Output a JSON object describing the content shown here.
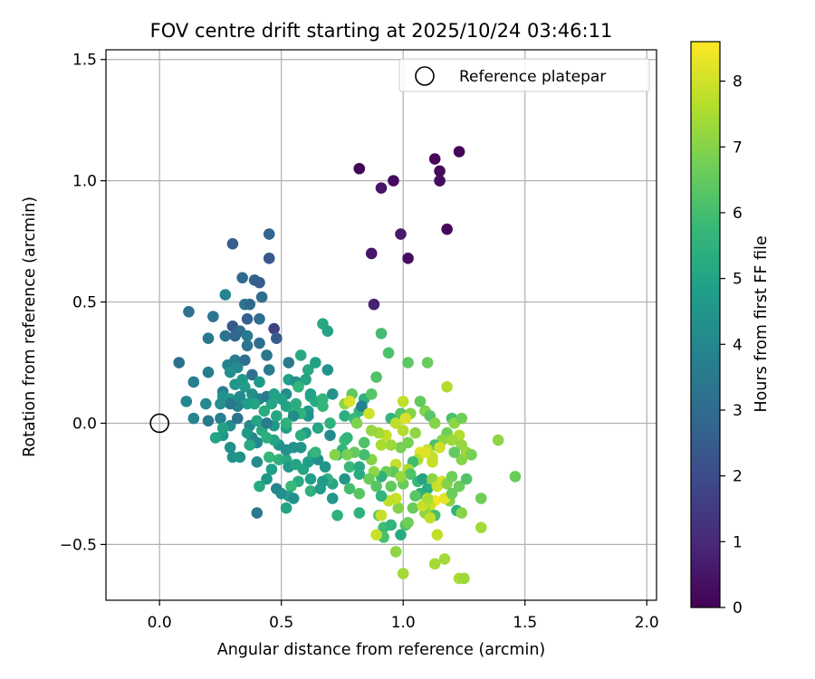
{
  "chart_data": {
    "type": "scatter",
    "title": "FOV centre drift starting at 2025/10/24 03:46:11",
    "xlabel": "Angular distance from reference (arcmin)",
    "ylabel": "Rotation from reference (arcmin)",
    "xlim": [
      -0.22,
      2.04
    ],
    "ylim": [
      -0.73,
      1.54
    ],
    "xticks": [
      0.0,
      0.5,
      1.0,
      1.5,
      2.0
    ],
    "xtick_labels": [
      "0.0",
      "0.5",
      "1.0",
      "1.5",
      "2.0"
    ],
    "yticks": [
      -0.5,
      0.0,
      0.5,
      1.0,
      1.5
    ],
    "ytick_labels": [
      "−0.5",
      "0.0",
      "0.5",
      "1.0",
      "1.5"
    ],
    "grid": true,
    "legend": {
      "label": "Reference platepar",
      "position": "top-right"
    },
    "reference_point": {
      "x": 0.0,
      "y": 0.0
    },
    "colorbar": {
      "label": "Hours from first FF file",
      "range": [
        0,
        8.6
      ],
      "ticks": [
        0,
        1,
        2,
        3,
        4,
        5,
        6,
        7,
        8
      ],
      "tick_labels": [
        "0",
        "1",
        "2",
        "3",
        "4",
        "5",
        "6",
        "7",
        "8"
      ],
      "colormap": "viridis"
    },
    "colormap_stops": [
      "#440154",
      "#482878",
      "#3e4989",
      "#31688e",
      "#26828e",
      "#1f9e89",
      "#35b779",
      "#6ece58",
      "#b5de2b",
      "#fde725"
    ],
    "points": [
      [
        0.82,
        1.05,
        0.1
      ],
      [
        0.96,
        1.0,
        0.25
      ],
      [
        0.91,
        0.97,
        0.5
      ],
      [
        1.13,
        1.09,
        0.15
      ],
      [
        1.23,
        1.12,
        0.1
      ],
      [
        1.15,
        1.04,
        0.2
      ],
      [
        1.15,
        1.0,
        0.3
      ],
      [
        1.18,
        0.8,
        0.2
      ],
      [
        0.99,
        0.78,
        0.6
      ],
      [
        0.87,
        0.7,
        0.5
      ],
      [
        1.02,
        0.68,
        0.3
      ],
      [
        0.88,
        0.49,
        0.8
      ],
      [
        0.3,
        0.74,
        2.6
      ],
      [
        0.45,
        0.78,
        2.8
      ],
      [
        0.45,
        0.68,
        2.4
      ],
      [
        0.34,
        0.6,
        2.9
      ],
      [
        0.39,
        0.59,
        2.7
      ],
      [
        0.41,
        0.58,
        2.5
      ],
      [
        0.35,
        0.49,
        3.3
      ],
      [
        0.37,
        0.49,
        2.9
      ],
      [
        0.42,
        0.52,
        3.1
      ],
      [
        0.27,
        0.53,
        3.9
      ],
      [
        0.12,
        0.46,
        3.2
      ],
      [
        0.22,
        0.44,
        3.3
      ],
      [
        0.36,
        0.43,
        2.6
      ],
      [
        0.41,
        0.43,
        3.1
      ],
      [
        0.3,
        0.4,
        2.4
      ],
      [
        0.33,
        0.38,
        3.0
      ],
      [
        0.27,
        0.36,
        3.3
      ],
      [
        0.31,
        0.36,
        2.8
      ],
      [
        0.36,
        0.36,
        3.5
      ],
      [
        0.47,
        0.39,
        1.7
      ],
      [
        0.48,
        0.35,
        2.5
      ],
      [
        0.2,
        0.35,
        3.4
      ],
      [
        0.36,
        0.32,
        3.3
      ],
      [
        0.41,
        0.33,
        3.1
      ],
      [
        0.44,
        0.28,
        3.4
      ],
      [
        0.31,
        0.26,
        3.6
      ],
      [
        0.35,
        0.26,
        3.1
      ],
      [
        0.28,
        0.24,
        3.8
      ],
      [
        0.32,
        0.23,
        4.1
      ],
      [
        0.29,
        0.21,
        4.3
      ],
      [
        0.45,
        0.22,
        3.6
      ],
      [
        0.38,
        0.2,
        3.2
      ],
      [
        0.34,
        0.18,
        4.6
      ],
      [
        0.26,
        0.13,
        3.6
      ],
      [
        0.14,
        0.17,
        3.7
      ],
      [
        0.2,
        0.21,
        3.7
      ],
      [
        0.08,
        0.25,
        3.2
      ],
      [
        0.31,
        0.16,
        4.5
      ],
      [
        0.35,
        0.15,
        4.7
      ],
      [
        0.26,
        0.11,
        4.4
      ],
      [
        0.29,
        0.1,
        4.6
      ],
      [
        0.33,
        0.11,
        4.1
      ],
      [
        0.38,
        0.12,
        4.3
      ],
      [
        0.41,
        0.1,
        3.9
      ],
      [
        0.44,
        0.11,
        3.5
      ],
      [
        0.47,
        0.12,
        4.9
      ],
      [
        0.52,
        0.12,
        4.2
      ],
      [
        0.53,
        0.18,
        4.8
      ],
      [
        0.56,
        0.17,
        4.3
      ],
      [
        0.53,
        0.25,
        3.5
      ],
      [
        0.6,
        0.18,
        5.0
      ],
      [
        0.57,
        0.15,
        5.6
      ],
      [
        0.61,
        0.22,
        5.2
      ],
      [
        0.64,
        0.25,
        4.9
      ],
      [
        0.58,
        0.28,
        5.2
      ],
      [
        0.67,
        0.41,
        5.2
      ],
      [
        0.69,
        0.38,
        5.0
      ],
      [
        0.69,
        0.22,
        4.4
      ],
      [
        0.62,
        0.11,
        5.4
      ],
      [
        0.64,
        0.09,
        5.2
      ],
      [
        0.67,
        0.07,
        5.6
      ],
      [
        0.61,
        0.05,
        4.7
      ],
      [
        0.61,
        0.03,
        4.4
      ],
      [
        0.55,
        0.05,
        5.8
      ],
      [
        0.58,
        0.04,
        5.5
      ],
      [
        0.52,
        0.07,
        5.0
      ],
      [
        0.5,
        0.1,
        4.9
      ],
      [
        0.46,
        0.08,
        5.1
      ],
      [
        0.43,
        0.05,
        5.3
      ],
      [
        0.39,
        0.08,
        5.0
      ],
      [
        0.36,
        0.08,
        4.8
      ],
      [
        0.32,
        0.07,
        3.9
      ],
      [
        0.29,
        0.08,
        3.4
      ],
      [
        0.25,
        0.08,
        4.3
      ],
      [
        0.19,
        0.08,
        4.1
      ],
      [
        0.11,
        0.09,
        4.0
      ],
      [
        0.14,
        0.02,
        3.9
      ],
      [
        0.2,
        0.01,
        3.5
      ],
      [
        0.25,
        0.02,
        3.8
      ],
      [
        0.29,
        -0.01,
        4.2
      ],
      [
        0.32,
        0.02,
        3.3
      ],
      [
        0.37,
        -0.01,
        4.1
      ],
      [
        0.4,
        0.01,
        5.0
      ],
      [
        0.42,
        -0.03,
        5.2
      ],
      [
        0.47,
        -0.01,
        4.5
      ],
      [
        0.52,
        -0.02,
        4.9
      ],
      [
        0.55,
        0.03,
        4.2
      ],
      [
        0.6,
        -0.04,
        4.7
      ],
      [
        0.65,
        -0.02,
        5.1
      ],
      [
        0.7,
        0.0,
        5.5
      ],
      [
        0.71,
        0.12,
        4.3
      ],
      [
        0.7,
        -0.05,
        4.1
      ],
      [
        0.76,
        0.03,
        5.4
      ],
      [
        0.76,
        -0.07,
        5.9
      ],
      [
        0.75,
        -0.11,
        5.6
      ],
      [
        0.73,
        -0.13,
        5.5
      ],
      [
        0.77,
        -0.06,
        5.6
      ],
      [
        0.8,
        0.02,
        5.8
      ],
      [
        0.82,
        0.05,
        5.6
      ],
      [
        0.84,
        0.1,
        5.5
      ],
      [
        0.87,
        0.12,
        6.3
      ],
      [
        0.89,
        0.19,
        6.2
      ],
      [
        0.79,
        0.12,
        6.5
      ],
      [
        0.76,
        0.08,
        7.1
      ],
      [
        0.83,
        0.07,
        3.8
      ],
      [
        0.91,
        0.37,
        6.0
      ],
      [
        0.94,
        0.29,
        6.1
      ],
      [
        1.02,
        0.25,
        6.4
      ],
      [
        1.1,
        0.25,
        6.6
      ],
      [
        1.18,
        0.15,
        7.6
      ],
      [
        1.0,
        0.09,
        7.8
      ],
      [
        1.03,
        0.04,
        7.0
      ],
      [
        1.07,
        0.09,
        6.5
      ],
      [
        1.09,
        0.05,
        6.9
      ],
      [
        1.11,
        0.03,
        6.3
      ],
      [
        1.2,
        0.02,
        6.1
      ],
      [
        1.21,
        0.0,
        7.1
      ],
      [
        1.24,
        0.02,
        6.7
      ],
      [
        1.23,
        -0.05,
        7.6
      ],
      [
        1.18,
        -0.04,
        6.7
      ],
      [
        1.16,
        -0.07,
        7.1
      ],
      [
        1.13,
        -0.09,
        6.1
      ],
      [
        1.1,
        -0.11,
        7.8
      ],
      [
        1.07,
        -0.12,
        8.2
      ],
      [
        1.06,
        -0.15,
        7.6
      ],
      [
        1.04,
        -0.16,
        5.9
      ],
      [
        1.02,
        -0.19,
        7.5
      ],
      [
        0.97,
        -0.17,
        7.9
      ],
      [
        0.96,
        -0.2,
        6.4
      ],
      [
        0.93,
        -0.2,
        6.7
      ],
      [
        0.91,
        -0.22,
        5.5
      ],
      [
        0.88,
        -0.2,
        7.1
      ],
      [
        0.87,
        -0.15,
        7.0
      ],
      [
        0.84,
        -0.13,
        6.0
      ],
      [
        0.84,
        -0.08,
        6.2
      ],
      [
        0.8,
        -0.12,
        6.5
      ],
      [
        0.77,
        -0.13,
        6.8
      ],
      [
        0.72,
        -0.13,
        7.0
      ],
      [
        0.78,
        -0.18,
        5.8
      ],
      [
        0.82,
        -0.21,
        5.3
      ],
      [
        0.76,
        -0.23,
        4.5
      ],
      [
        0.71,
        -0.25,
        5.1
      ],
      [
        0.69,
        -0.23,
        5.5
      ],
      [
        0.67,
        -0.24,
        4.7
      ],
      [
        0.62,
        -0.23,
        4.8
      ],
      [
        0.57,
        -0.24,
        5.3
      ],
      [
        0.54,
        -0.26,
        5.8
      ],
      [
        0.53,
        -0.3,
        4.9
      ],
      [
        0.52,
        -0.35,
        5.0
      ],
      [
        0.55,
        -0.31,
        4.3
      ],
      [
        0.5,
        -0.29,
        4.3
      ],
      [
        0.48,
        -0.27,
        4.0
      ],
      [
        0.41,
        -0.26,
        5.2
      ],
      [
        0.4,
        -0.37,
        3.5
      ],
      [
        0.44,
        -0.23,
        4.5
      ],
      [
        0.46,
        -0.19,
        4.8
      ],
      [
        0.45,
        -0.14,
        5.7
      ],
      [
        0.49,
        -0.15,
        5.5
      ],
      [
        0.52,
        -0.15,
        5.2
      ],
      [
        0.53,
        -0.18,
        4.6
      ],
      [
        0.56,
        -0.17,
        5.0
      ],
      [
        0.59,
        -0.19,
        5.0
      ],
      [
        0.61,
        -0.16,
        4.8
      ],
      [
        0.63,
        -0.13,
        5.1
      ],
      [
        0.65,
        -0.15,
        4.3
      ],
      [
        0.68,
        -0.18,
        4.5
      ],
      [
        0.62,
        -0.28,
        5.5
      ],
      [
        0.66,
        -0.27,
        4.7
      ],
      [
        0.58,
        -0.1,
        4.5
      ],
      [
        0.55,
        -0.1,
        4.4
      ],
      [
        0.52,
        -0.11,
        4.3
      ],
      [
        0.49,
        -0.09,
        4.4
      ],
      [
        0.47,
        -0.07,
        5.0
      ],
      [
        0.44,
        -0.06,
        5.4
      ],
      [
        0.4,
        -0.08,
        4.1
      ],
      [
        0.38,
        -0.06,
        3.9
      ],
      [
        0.37,
        -0.09,
        5.2
      ],
      [
        0.4,
        -0.16,
        4.2
      ],
      [
        0.33,
        -0.14,
        4.4
      ],
      [
        0.3,
        -0.14,
        4.4
      ],
      [
        0.29,
        -0.1,
        4.3
      ],
      [
        0.26,
        -0.05,
        4.6
      ],
      [
        0.23,
        -0.06,
        5.0
      ],
      [
        0.26,
        -0.02,
        4.9
      ],
      [
        0.36,
        -0.04,
        4.6
      ],
      [
        0.71,
        -0.31,
        4.6
      ],
      [
        0.73,
        -0.38,
        5.5
      ],
      [
        0.78,
        -0.27,
        6.0
      ],
      [
        0.82,
        -0.29,
        6.3
      ],
      [
        0.82,
        -0.37,
        5.5
      ],
      [
        0.9,
        -0.38,
        6.4
      ],
      [
        0.92,
        -0.43,
        5.9
      ],
      [
        0.95,
        -0.42,
        5.6
      ],
      [
        0.92,
        -0.47,
        6.1
      ],
      [
        0.99,
        -0.46,
        5.2
      ],
      [
        1.01,
        -0.42,
        6.2
      ],
      [
        0.98,
        -0.35,
        7.0
      ],
      [
        0.97,
        -0.31,
        7.9
      ],
      [
        0.95,
        -0.26,
        6.5
      ],
      [
        1.0,
        -0.25,
        6.6
      ],
      [
        1.03,
        -0.21,
        6.2
      ],
      [
        1.06,
        -0.24,
        5.8
      ],
      [
        1.08,
        -0.23,
        5.0
      ],
      [
        1.1,
        -0.27,
        5.3
      ],
      [
        1.12,
        -0.23,
        7.1
      ],
      [
        1.14,
        -0.26,
        7.9
      ],
      [
        1.16,
        -0.24,
        8.0
      ],
      [
        1.18,
        -0.25,
        7.0
      ],
      [
        1.2,
        -0.22,
        6.7
      ],
      [
        1.23,
        -0.26,
        6.6
      ],
      [
        1.26,
        -0.23,
        6.2
      ],
      [
        1.22,
        -0.36,
        5.5
      ],
      [
        1.19,
        -0.32,
        7.0
      ],
      [
        1.17,
        -0.31,
        8.3
      ],
      [
        1.13,
        -0.32,
        8.5
      ],
      [
        1.11,
        -0.34,
        7.9
      ],
      [
        1.09,
        -0.35,
        7.6
      ],
      [
        1.07,
        -0.29,
        5.4
      ],
      [
        1.04,
        -0.35,
        6.6
      ],
      [
        1.02,
        -0.41,
        6.7
      ],
      [
        1.09,
        -0.37,
        7.1
      ],
      [
        1.13,
        -0.38,
        6.1
      ],
      [
        1.11,
        -0.39,
        7.8
      ],
      [
        0.94,
        -0.32,
        7.8
      ],
      [
        0.91,
        -0.38,
        7.9
      ],
      [
        0.89,
        -0.46,
        7.9
      ],
      [
        0.97,
        -0.53,
        7.1
      ],
      [
        1.0,
        -0.62,
        7.4
      ],
      [
        1.14,
        -0.46,
        7.8
      ],
      [
        1.13,
        -0.58,
        7.4
      ],
      [
        1.17,
        -0.56,
        7.4
      ],
      [
        1.23,
        -0.64,
        7.5
      ],
      [
        1.25,
        -0.64,
        7.3
      ],
      [
        1.24,
        -0.37,
        7.0
      ],
      [
        1.24,
        -0.15,
        7.0
      ],
      [
        1.26,
        -0.12,
        7.3
      ],
      [
        1.24,
        -0.09,
        7.2
      ],
      [
        1.21,
        -0.12,
        6.5
      ],
      [
        1.28,
        -0.13,
        6.8
      ],
      [
        1.32,
        -0.31,
        6.7
      ],
      [
        1.32,
        -0.43,
        7.4
      ],
      [
        1.39,
        -0.07,
        7.1
      ],
      [
        1.46,
        -0.22,
        6.6
      ],
      [
        0.99,
        -0.1,
        6.8
      ],
      [
        0.95,
        -0.09,
        7.3
      ],
      [
        0.93,
        -0.05,
        7.8
      ],
      [
        0.9,
        -0.04,
        7.4
      ],
      [
        0.91,
        -0.09,
        7.5
      ],
      [
        0.87,
        -0.03,
        7.2
      ],
      [
        0.86,
        0.04,
        8.0
      ],
      [
        0.81,
        0.0,
        6.9
      ],
      [
        0.78,
        0.09,
        8.1
      ],
      [
        0.95,
        0.02,
        5.6
      ],
      [
        0.97,
        0.0,
        7.8
      ],
      [
        1.0,
        -0.03,
        7.6
      ],
      [
        1.05,
        -0.04,
        7.1
      ],
      [
        1.13,
        0.0,
        7.0
      ],
      [
        1.2,
        -0.07,
        7.3
      ],
      [
        1.15,
        -0.1,
        8.0
      ],
      [
        1.12,
        -0.14,
        7.8
      ],
      [
        1.09,
        -0.12,
        8.2
      ],
      [
        1.02,
        -0.08,
        6.8
      ],
      [
        1.12,
        -0.16,
        7.9
      ],
      [
        0.99,
        -0.22,
        7.2
      ],
      [
        0.86,
        -0.23,
        6.6
      ],
      [
        0.89,
        -0.26,
        6.3
      ],
      [
        0.91,
        -0.3,
        5.6
      ],
      [
        1.05,
        -0.3,
        6.3
      ],
      [
        1.08,
        -0.34,
        7.9
      ],
      [
        1.1,
        -0.31,
        7.5
      ],
      [
        1.2,
        -0.29,
        6.6
      ],
      [
        0.99,
        0.04,
        6.3
      ],
      [
        1.01,
        0.02,
        8.1
      ],
      [
        0.82,
        -0.18,
        5.2
      ],
      [
        0.58,
        -0.05,
        5.4
      ],
      [
        0.64,
        -0.12,
        5.6
      ],
      [
        0.67,
        0.1,
        5.6
      ],
      [
        0.41,
        0.17,
        4.6
      ],
      [
        0.44,
        0.0,
        3.6
      ],
      [
        0.62,
        0.12,
        4.9
      ],
      [
        0.56,
        0.08,
        5.3
      ],
      [
        0.48,
        0.03,
        5.1
      ],
      [
        0.52,
        0.0,
        5.5
      ]
    ]
  }
}
